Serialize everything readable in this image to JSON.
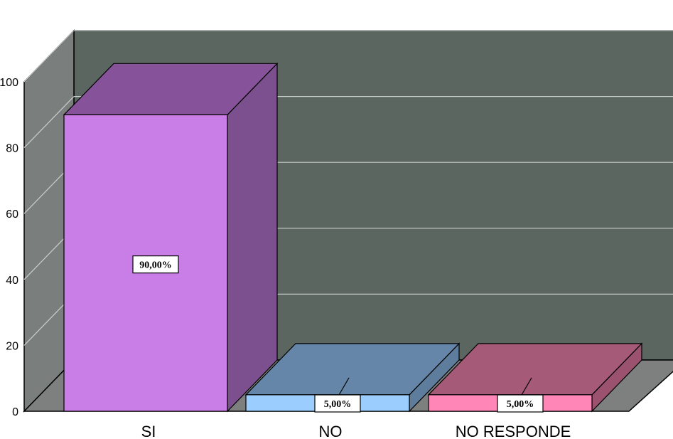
{
  "chart_data": {
    "type": "bar",
    "style": "3d",
    "categories": [
      "SI",
      "NO",
      "NO RESPONDE"
    ],
    "values": [
      90,
      5,
      5
    ],
    "value_labels": [
      "90,00%",
      "5,00%",
      "5,00%"
    ],
    "ylim": [
      0,
      100
    ],
    "yticks": [
      0,
      20,
      40,
      60,
      80,
      100
    ],
    "ytick_labels": [
      "0",
      "20",
      "40",
      "60",
      "80",
      "100"
    ],
    "grid": true,
    "legend": "none",
    "colors": {
      "plot_background": "#5b6661",
      "side_wall": "#7a7f7d",
      "floor": "#7d807e",
      "gridline": "#c9cfcc",
      "bars": [
        {
          "front": "#c87ee6",
          "top": "#86539a",
          "side": "#7c4f8e"
        },
        {
          "front": "#9ccdff",
          "top": "#6586a8",
          "side": "#5e7d9c"
        },
        {
          "front": "#ff86b7",
          "top": "#a55a77",
          "side": "#9a526f"
        }
      ]
    }
  }
}
